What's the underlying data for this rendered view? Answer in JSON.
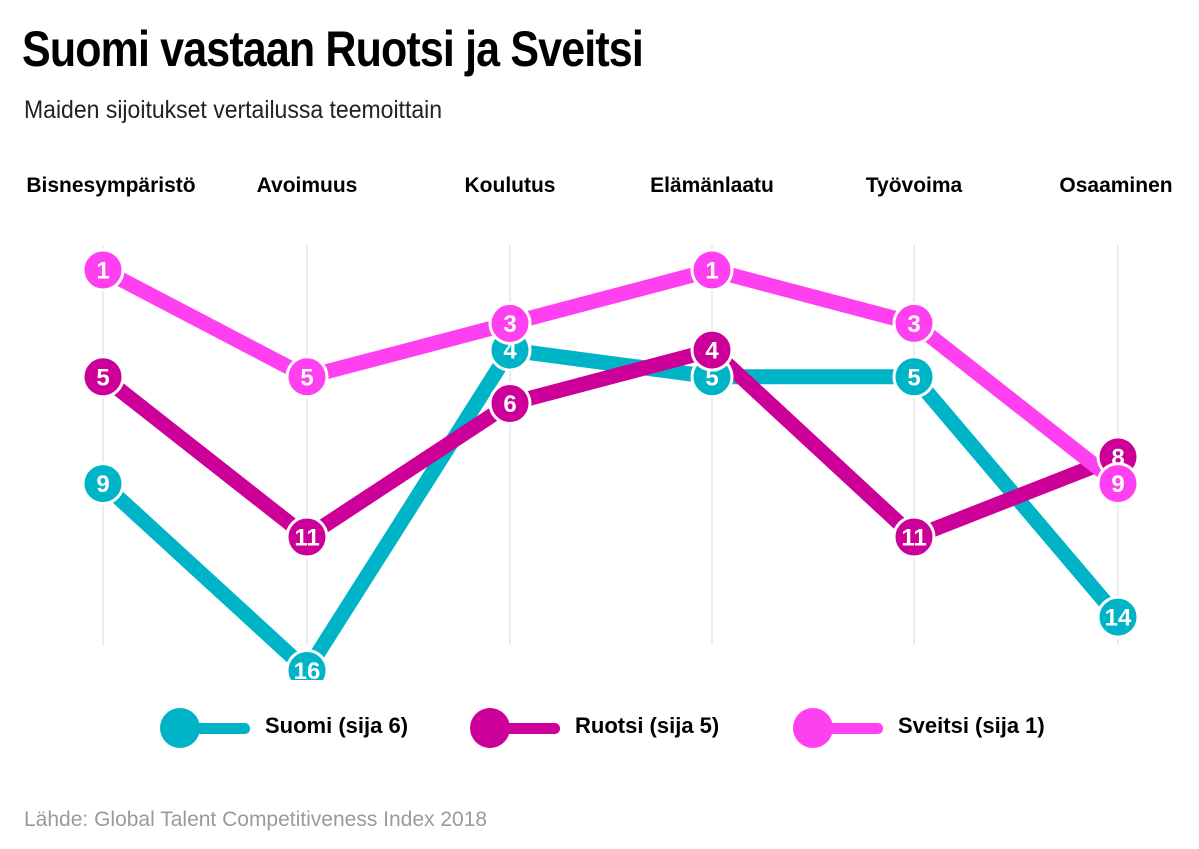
{
  "header": {
    "title": "Suomi vastaan Ruotsi ja Sveitsi",
    "subtitle": "Maiden sijoitukset vertailussa teemoittain"
  },
  "source": "Lähde: Global Talent Competitiveness Index 2018",
  "colors": {
    "suomi": "#00b4c8",
    "ruotsi": "#cc0099",
    "sveitsi": "#ff40f0",
    "grid": "#e6e6e6"
  },
  "chart_data": {
    "type": "line",
    "title": "Suomi vastaan Ruotsi ja Sveitsi",
    "subtitle": "Maiden sijoitukset vertailussa teemoittain",
    "categories": [
      "Bisnesympäristö",
      "Avoimuus",
      "Koulutus",
      "Elämänlaatu",
      "Työvoima",
      "Osaaminen"
    ],
    "y_scale": "rank (1 = best, shown at top)",
    "ylim": [
      1,
      16
    ],
    "grid": "vertical lines at each category",
    "legend_position": "bottom",
    "series": [
      {
        "name": "Suomi (sija 6)",
        "color_key": "suomi",
        "values": [
          9,
          16,
          4,
          5,
          5,
          14
        ]
      },
      {
        "name": "Ruotsi (sija 5)",
        "color_key": "ruotsi",
        "values": [
          5,
          11,
          6,
          4,
          11,
          8
        ]
      },
      {
        "name": "Sveitsi (sija 1)",
        "color_key": "sveitsi",
        "values": [
          1,
          5,
          3,
          1,
          3,
          9
        ]
      }
    ]
  }
}
